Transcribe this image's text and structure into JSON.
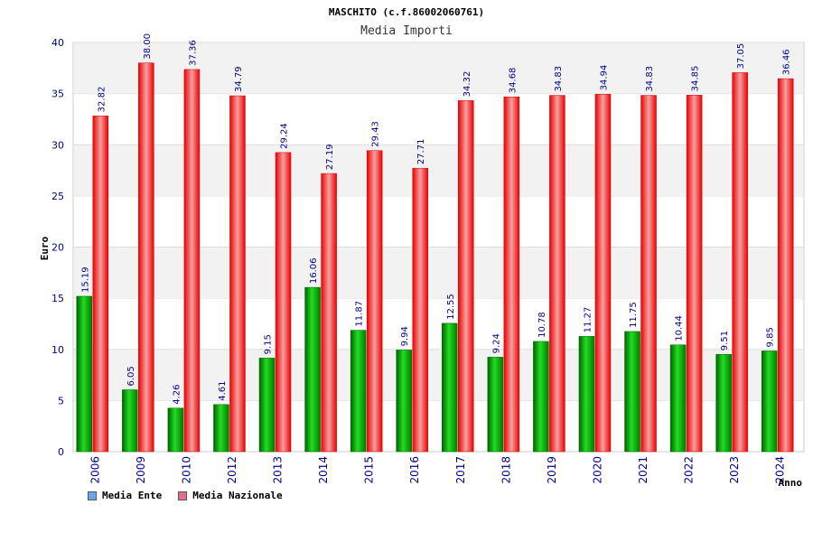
{
  "chart_data": {
    "type": "bar",
    "title": "MASCHITO (c.f.86002060761)",
    "subtitle": "Media Importi",
    "xlabel": "Anno",
    "ylabel": "Euro",
    "ylim": [
      0,
      40
    ],
    "yticks": [
      0,
      5,
      10,
      15,
      20,
      25,
      30,
      35,
      40
    ],
    "grid": true,
    "legend_position": "bottom-left",
    "categories": [
      "2006",
      "2009",
      "2010",
      "2012",
      "2013",
      "2014",
      "2015",
      "2016",
      "2017",
      "2018",
      "2019",
      "2020",
      "2021",
      "2022",
      "2023",
      "2024"
    ],
    "series": [
      {
        "name": "Media Ente",
        "color": "#00b000",
        "legend_color": "#6aa7e8",
        "values": [
          15.19,
          6.05,
          4.26,
          4.61,
          9.15,
          16.06,
          11.87,
          9.94,
          12.55,
          9.24,
          10.78,
          11.27,
          11.75,
          10.44,
          9.51,
          9.85
        ],
        "labels": [
          "15.19",
          "6.05",
          "4.26",
          "4.61",
          "9.15",
          "16.06",
          "11.87",
          "9.94",
          "12.55",
          "9.24",
          "10.78",
          "11.27",
          "11.75",
          "10.44",
          "9.51",
          "9.85"
        ]
      },
      {
        "name": "Media Nazionale",
        "color": "#ee1111",
        "legend_color": "#e07090",
        "values": [
          32.82,
          38.0,
          37.36,
          34.79,
          29.24,
          27.19,
          29.43,
          27.71,
          34.32,
          34.68,
          34.83,
          34.94,
          34.83,
          34.85,
          37.05,
          36.46
        ],
        "labels": [
          "32.82",
          "38.00",
          "37.36",
          "34.79",
          "29.24",
          "27.19",
          "29.43",
          "27.71",
          "34.32",
          "34.68",
          "34.83",
          "34.94",
          "34.83",
          "34.85",
          "37.05",
          "36.46"
        ]
      }
    ]
  }
}
